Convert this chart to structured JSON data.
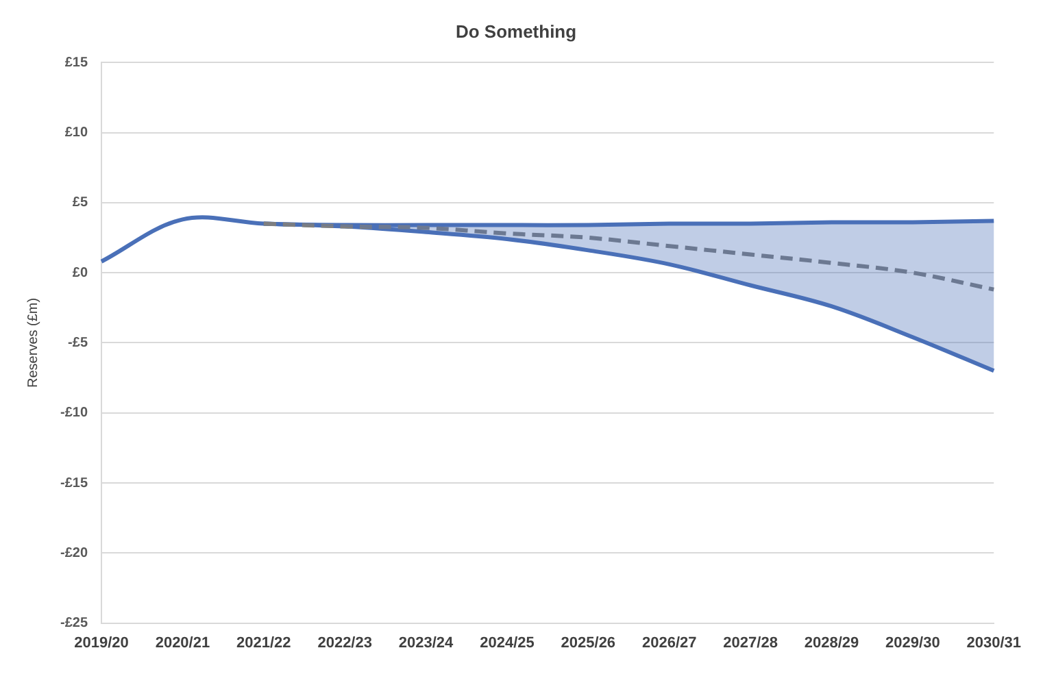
{
  "chart_data": {
    "type": "line",
    "title": "Do Something",
    "ylabel": "Reserves (£m)",
    "categories": [
      "2019/20",
      "2020/21",
      "2021/22",
      "2022/23",
      "2023/24",
      "2024/25",
      "2025/26",
      "2026/27",
      "2027/28",
      "2028/29",
      "2029/30",
      "2030/31"
    ],
    "series": [
      {
        "color": "#4a70b8",
        "values": [
          0.8,
          3.8,
          3.5,
          3.4,
          3.4,
          3.4,
          3.4,
          3.5,
          3.5,
          3.6,
          3.6,
          3.7
        ]
      },
      {
        "color": "#4a70b8",
        "values": [
          null,
          null,
          3.5,
          3.3,
          2.9,
          2.4,
          1.6,
          0.6,
          -0.9,
          -2.4,
          -4.6,
          -7.0
        ]
      },
      {
        "color": "#7f7f7f",
        "line_style": "dashed",
        "values": [
          null,
          null,
          3.5,
          3.3,
          3.2,
          2.8,
          2.5,
          1.9,
          1.3,
          0.7,
          0.0,
          -1.2
        ],
        "lower": [
          null,
          null,
          3.5,
          3.3,
          2.9,
          2.4,
          1.6,
          0.6,
          -0.9,
          -2.4,
          -4.6,
          -7.0
        ],
        "upper": [
          null,
          null,
          3.5,
          3.4,
          3.4,
          3.4,
          3.4,
          3.5,
          3.5,
          3.6,
          3.6,
          3.7
        ]
      }
    ],
    "ylim": [
      -25,
      15
    ],
    "yticks": [
      {
        "value": 15,
        "label": "£15"
      },
      {
        "value": 10,
        "label": "£10"
      },
      {
        "value": 5,
        "label": "£5"
      },
      {
        "value": 0,
        "label": "£0"
      },
      {
        "value": -5,
        "label": "-£5"
      },
      {
        "value": -10,
        "label": "-£10"
      },
      {
        "value": -15,
        "label": "-£15"
      },
      {
        "value": -20,
        "label": "-£20"
      },
      {
        "value": -25,
        "label": "-£25"
      }
    ],
    "grid": "y",
    "legend": false,
    "marker": "none"
  }
}
